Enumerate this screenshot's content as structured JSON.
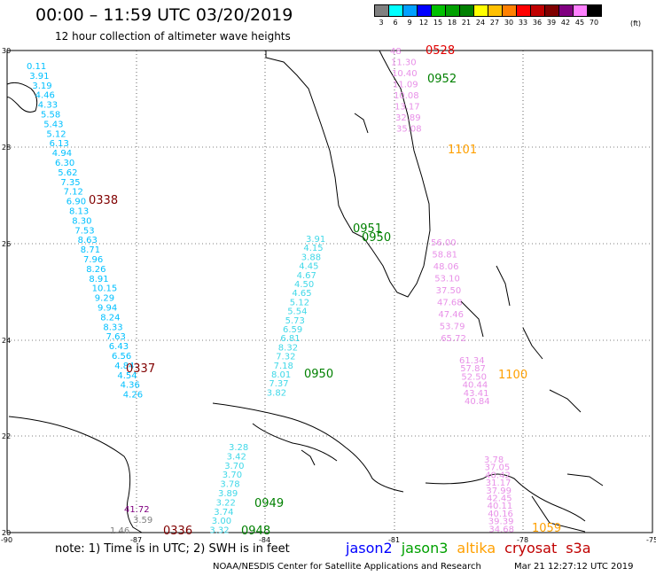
{
  "header": {
    "title": "00:00 – 11:59 UTC 03/20/2019",
    "subtitle": "12 hour collection of altimeter wave heights"
  },
  "legend": {
    "unit": "(ft)",
    "items": [
      {
        "label": "3",
        "color": "#808080"
      },
      {
        "label": "6",
        "color": "#00ffff"
      },
      {
        "label": "9",
        "color": "#00a0ff"
      },
      {
        "label": "12",
        "color": "#0000ff"
      },
      {
        "label": "15",
        "color": "#00c000"
      },
      {
        "label": "18",
        "color": "#00a000"
      },
      {
        "label": "21",
        "color": "#008000"
      },
      {
        "label": "24",
        "color": "#ffff00"
      },
      {
        "label": "27",
        "color": "#ffc000"
      },
      {
        "label": "30",
        "color": "#ff8000"
      },
      {
        "label": "33",
        "color": "#ff0000"
      },
      {
        "label": "36",
        "color": "#c00000"
      },
      {
        "label": "39",
        "color": "#800000"
      },
      {
        "label": "42",
        "color": "#800080"
      },
      {
        "label": "45",
        "color": "#ff80ff"
      },
      {
        "label": "70",
        "color": "#000000"
      }
    ]
  },
  "axes": {
    "lon_ticks": [
      "-90",
      "-87",
      "-84",
      "-81",
      "-78",
      "-75"
    ],
    "lat_ticks": [
      "30",
      "28",
      "26",
      "24",
      "22",
      "20"
    ]
  },
  "tracks": [
    {
      "name": "track-west",
      "color": "#00c0ff",
      "values": [
        "0.11",
        "3.91",
        "3.19",
        "4.46",
        "4.33",
        "5.58",
        "5.43",
        "5.12",
        "6.13",
        "4.94",
        "6.30",
        "5.62",
        "7.35",
        "7.12",
        "6.90",
        "8.13",
        "8.30",
        "7.53",
        "8.63",
        "8.71",
        "7.96",
        "8.26",
        "8.91",
        "10.15",
        "9.29",
        "9.94",
        "8.24",
        "8.33",
        "7.63",
        "6.43",
        "6.56",
        "4.84",
        "4.54",
        "4.36",
        "4.26"
      ]
    },
    {
      "name": "track-gulf",
      "color": "#40d8e8",
      "values": [
        "3.91",
        "4.15",
        "3.88",
        "4.45",
        "4.67",
        "4.50",
        "4.65",
        "5.12",
        "5.54",
        "5.73",
        "6.59",
        "6.81",
        "8.32",
        "7.32",
        "7.18",
        "8.01",
        "7.37",
        "3.82"
      ]
    },
    {
      "name": "track-caribbean-west",
      "color": "#40d8e8",
      "values": [
        "3.28",
        "3.42",
        "3.70",
        "3.70",
        "3.78",
        "3.89",
        "3.22",
        "3.74",
        "3.00",
        "3.32"
      ]
    },
    {
      "name": "track-atlantic",
      "color": "#e890e8",
      "values": [
        "56.00",
        "58.81",
        "48.06",
        "53.10",
        "37.50",
        "47.68",
        "47.46",
        "53.79",
        "65.72"
      ]
    },
    {
      "name": "track-bahamas",
      "color": "#e890e8",
      "values": [
        "61.34",
        "57.87",
        "52.50",
        "40.44",
        "43.41",
        "40.84"
      ]
    },
    {
      "name": "track-hispaniola",
      "color": "#e890e8",
      "values": [
        "3.78",
        "37.05",
        "40.42",
        "31.17",
        "37.99",
        "42.45",
        "40.11",
        "40.16",
        "39.39",
        "34.68"
      ]
    },
    {
      "name": "track-north-fl",
      "color": "#e890e8",
      "values": [
        "48",
        "11.30",
        "10.40",
        "11.09",
        "10.08",
        "13.17",
        "32.89",
        "35.08"
      ]
    }
  ],
  "passes": [
    "0528",
    "0952",
    "1101",
    "0338",
    "0951",
    "0950",
    "0337",
    "0950",
    "1100",
    "0949",
    "0948",
    "0336",
    "1059"
  ],
  "extra_values": [
    "41.72",
    "3.59",
    "1.46"
  ],
  "footer": {
    "note": "note: 1) Time is in UTC; 2) SWH is in feet",
    "satellites": [
      {
        "name": "jason2",
        "color": "#0000ff"
      },
      {
        "name": "jason3",
        "color": "#00a000"
      },
      {
        "name": "altika",
        "color": "#ffa000"
      },
      {
        "name": "cryosat",
        "color": "#c00000"
      },
      {
        "name": "s3a",
        "color": "#c00000"
      }
    ],
    "credit": "NOAA/NESDIS Center for Satellite Applications and Research",
    "stamp": "Mar 21 12:27:12 UTC 2019"
  }
}
